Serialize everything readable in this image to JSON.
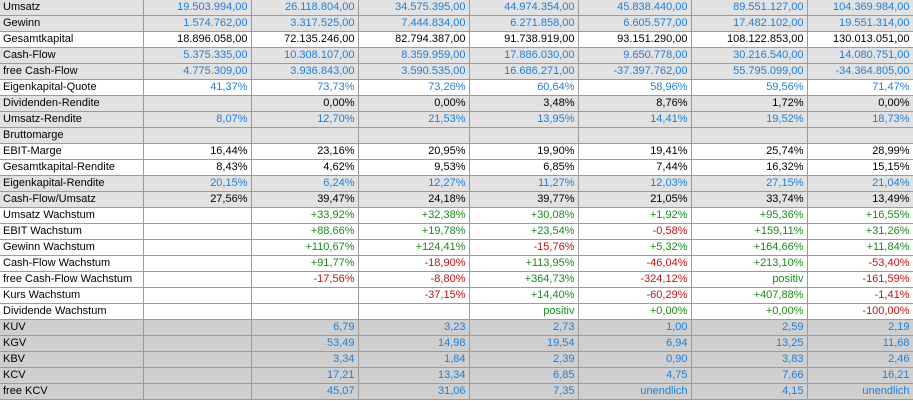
{
  "colors": {
    "black": "#000000",
    "blue": "#1f7fd8",
    "green": "#1c8a1c",
    "red": "#c41010",
    "white_bg": "#ffffff",
    "light_gray_bg": "#e2e2e2",
    "dark_gray_bg": "#cfcfcf"
  },
  "rows": [
    {
      "label": "Umsatz",
      "bg": "lgray",
      "color": "blue",
      "cells": [
        "19.503.994,00",
        "26.118.804,00",
        "34.575.395,00",
        "44.974.354,00",
        "45.838.440,00",
        "89.551.127,00",
        "104.369.984,00"
      ]
    },
    {
      "label": "Gewinn",
      "bg": "lgray",
      "color": "blue",
      "cells": [
        "1.574.762,00",
        "3.317.525,00",
        "7.444.834,00",
        "6.271.858,00",
        "6.605.577,00",
        "17.482.102,00",
        "19.551.314,00"
      ]
    },
    {
      "label": "Gesamtkapital",
      "bg": "white",
      "color": "black",
      "cells": [
        "18.896.058,00",
        "72.135.246,00",
        "82.794.387,00",
        "91.738.919,00",
        "93.151.290,00",
        "108.122.853,00",
        "130.013.051,00"
      ]
    },
    {
      "label": "Cash-Flow",
      "bg": "lgray",
      "color": "blue",
      "cells": [
        "5.375.335,00",
        "10.308.107,00",
        "8.359.959,00",
        "17.886.030,00",
        "9.650.778,00",
        "30.216.540,00",
        "14.080.751,00"
      ]
    },
    {
      "label": "free Cash-Flow",
      "bg": "lgray",
      "color": "blue",
      "cells": [
        "4.775.309,00",
        "3.936.843,00",
        "3.590.535,00",
        "16.686.271,00",
        "-37.397.762,00",
        "55.795.099,00",
        "-34.364.805,00"
      ]
    },
    {
      "label": "Eigenkapital-Quote",
      "bg": "white",
      "color": "blue",
      "cells": [
        "41,37%",
        "73,73%",
        "73,26%",
        "60,64%",
        "58,96%",
        "59,56%",
        "71,47%"
      ]
    },
    {
      "label": "Dividenden-Rendite",
      "bg": "lgray",
      "color": "black",
      "cells": [
        "",
        "0,00%",
        "0,00%",
        "3,48%",
        "8,76%",
        "1,72%",
        "0,00%"
      ]
    },
    {
      "label": "Umsatz-Rendite",
      "bg": "lgray",
      "color": "blue",
      "cells": [
        "8,07%",
        "12,70%",
        "21,53%",
        "13,95%",
        "14,41%",
        "19,52%",
        "18,73%"
      ]
    },
    {
      "label": "Bruttomarge",
      "bg": "lgray",
      "color": "black",
      "cells": [
        "",
        "",
        "",
        "",
        "",
        "",
        ""
      ]
    },
    {
      "label": "EBIT-Marge",
      "bg": "white",
      "color": "black",
      "cells": [
        "16,44%",
        "23,16%",
        "20,95%",
        "19,90%",
        "19,41%",
        "25,74%",
        "28,99%"
      ]
    },
    {
      "label": "Gesamtkapital-Rendite",
      "bg": "white",
      "color": "black",
      "cells": [
        "8,43%",
        "4,62%",
        "9,53%",
        "6,85%",
        "7,44%",
        "16,32%",
        "15,15%"
      ]
    },
    {
      "label": "Eigenkapital-Rendite",
      "bg": "lgray",
      "color": "blue",
      "cells": [
        "20,15%",
        "6,24%",
        "12,27%",
        "11,27%",
        "12,03%",
        "27,15%",
        "21,04%"
      ]
    },
    {
      "label": "Cash-Flow/Umsatz",
      "bg": "lgray",
      "color": "black",
      "cells": [
        "27,56%",
        "39,47%",
        "24,18%",
        "39,77%",
        "21,05%",
        "33,74%",
        "13,49%"
      ]
    },
    {
      "label": "Umsatz Wachstum",
      "bg": "white",
      "color": "auto",
      "cells": [
        "",
        "+33,92%",
        "+32,38%",
        "+30,08%",
        "+1,92%",
        "+95,36%",
        "+16,55%"
      ]
    },
    {
      "label": "EBIT Wachstum",
      "bg": "white",
      "color": "auto",
      "cells": [
        "",
        "+88,66%",
        "+19,78%",
        "+23,54%",
        "-0,58%",
        "+159,11%",
        "+31,26%"
      ]
    },
    {
      "label": "Gewinn Wachstum",
      "bg": "white",
      "color": "auto",
      "cells": [
        "",
        "+110,67%",
        "+124,41%",
        "-15,76%",
        "+5,32%",
        "+164,66%",
        "+11,84%"
      ]
    },
    {
      "label": "Cash-Flow Wachstum",
      "bg": "white",
      "color": "auto",
      "cells": [
        "",
        "+91,77%",
        "-18,90%",
        "+113,95%",
        "-46,04%",
        "+213,10%",
        "-53,40%"
      ]
    },
    {
      "label": "free Cash-Flow Wachstum",
      "bg": "white",
      "color": "auto",
      "cells": [
        "",
        "-17,56%",
        "-8,80%",
        "+364,73%",
        "-324,12%",
        "positiv",
        "-161,59%"
      ]
    },
    {
      "label": "Kurs Wachstum",
      "bg": "white",
      "color": "auto",
      "cells": [
        "",
        "",
        "-37,15%",
        "+14,40%",
        "-60,29%",
        "+407,88%",
        "-1,41%"
      ]
    },
    {
      "label": "Dividende Wachstum",
      "bg": "white",
      "color": "auto",
      "cells": [
        "",
        "",
        "",
        "positiv",
        "+0,00%",
        "+0,00%",
        "-100,00%"
      ]
    },
    {
      "label": "KUV",
      "bg": "dgray",
      "color": "blue",
      "cells": [
        "",
        "6,79",
        "3,23",
        "2,73",
        "1,00",
        "2,59",
        "2,19"
      ]
    },
    {
      "label": "KGV",
      "bg": "dgray",
      "color": "blue",
      "cells": [
        "",
        "53,49",
        "14,98",
        "19,54",
        "6,94",
        "13,25",
        "11,68"
      ]
    },
    {
      "label": "KBV",
      "bg": "dgray",
      "color": "blue",
      "cells": [
        "",
        "3,34",
        "1,84",
        "2,39",
        "0,90",
        "3,83",
        "2,46"
      ]
    },
    {
      "label": "KCV",
      "bg": "dgray",
      "color": "blue",
      "cells": [
        "",
        "17,21",
        "13,34",
        "6,85",
        "4,75",
        "7,66",
        "16,21"
      ]
    },
    {
      "label": "free KCV",
      "bg": "dgray",
      "color": "blue",
      "cells": [
        "",
        "45,07",
        "31,06",
        "7,35",
        "unendlich",
        "4,15",
        "unendlich"
      ]
    }
  ]
}
